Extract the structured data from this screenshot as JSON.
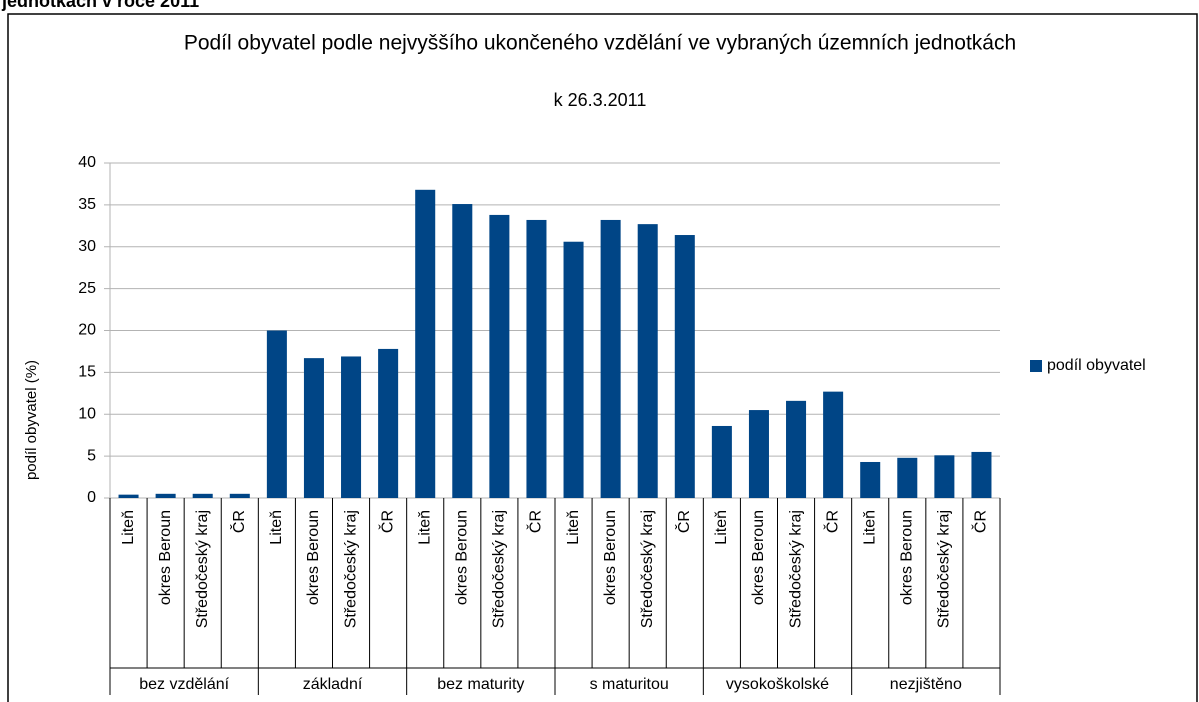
{
  "header": "jednotkách v roce 2011",
  "chart_data": {
    "type": "bar",
    "title": "Podíl obyvatel podle nejvyššího ukončeného vzdělání ve vybraných územních jednotkách",
    "subtitle": "k 26.3.2011",
    "y_label": "podíl obyvatel (%)",
    "groups": [
      "bez vzdělání",
      "základní",
      "bez maturity",
      "s maturitou",
      "vysokoškolské",
      "nezjištěno"
    ],
    "categories": [
      "Liteň",
      "okres Beroun",
      "Středočeský kraj",
      "ČR",
      "Liteň",
      "okres Beroun",
      "Středočeský kraj",
      "ČR",
      "Liteň",
      "okres Beroun",
      "Středočeský kraj",
      "ČR",
      "Liteň",
      "okres Beroun",
      "Středočeský kraj",
      "ČR",
      "Liteň",
      "okres Beroun",
      "Středočeský kraj",
      "ČR",
      "Liteň",
      "okres Beroun",
      "Středočeský kraj",
      "ČR"
    ],
    "series": [
      {
        "name": "podíl obyvatel",
        "color": "#004586",
        "values": [
          0.4,
          0.5,
          0.5,
          0.5,
          20.0,
          16.7,
          16.9,
          17.8,
          36.8,
          35.1,
          33.8,
          33.2,
          30.6,
          33.2,
          32.7,
          31.4,
          8.6,
          10.5,
          11.6,
          12.7,
          4.3,
          4.8,
          5.1,
          5.5
        ]
      }
    ],
    "ylim": [
      0,
      40
    ],
    "yticks": [
      0,
      5,
      10,
      15,
      20,
      25,
      30,
      35,
      40
    ],
    "grid": true,
    "legend": "right"
  }
}
